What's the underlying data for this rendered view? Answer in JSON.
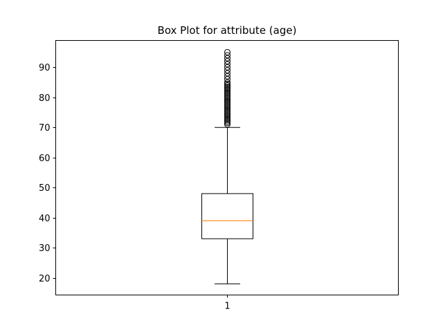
{
  "chart_data": {
    "type": "box",
    "title": "Box Plot for attribute (age)",
    "xlabel": "",
    "ylabel": "",
    "categories": [
      "1"
    ],
    "ylim": [
      14.3,
      98.9
    ],
    "yticks": [
      20,
      30,
      40,
      50,
      60,
      70,
      80,
      90
    ],
    "grid": false,
    "colors": {
      "median": "#ff7f0e",
      "box": "#000000",
      "flier": "#000000"
    },
    "boxes": [
      {
        "label": "1",
        "whisker_low": 18,
        "q1": 33,
        "median": 39,
        "q3": 48,
        "whisker_high": 70,
        "fliers": [
          71,
          71.5,
          72,
          72.5,
          73,
          73.5,
          74,
          74.5,
          75,
          75.5,
          76,
          76.5,
          77,
          77.5,
          78,
          78.5,
          79,
          79.5,
          80,
          80.5,
          81,
          81.5,
          82,
          82.5,
          83,
          83.5,
          84,
          84.5,
          85,
          86,
          87,
          88,
          89,
          90,
          91,
          92,
          93,
          94,
          95
        ]
      }
    ]
  }
}
